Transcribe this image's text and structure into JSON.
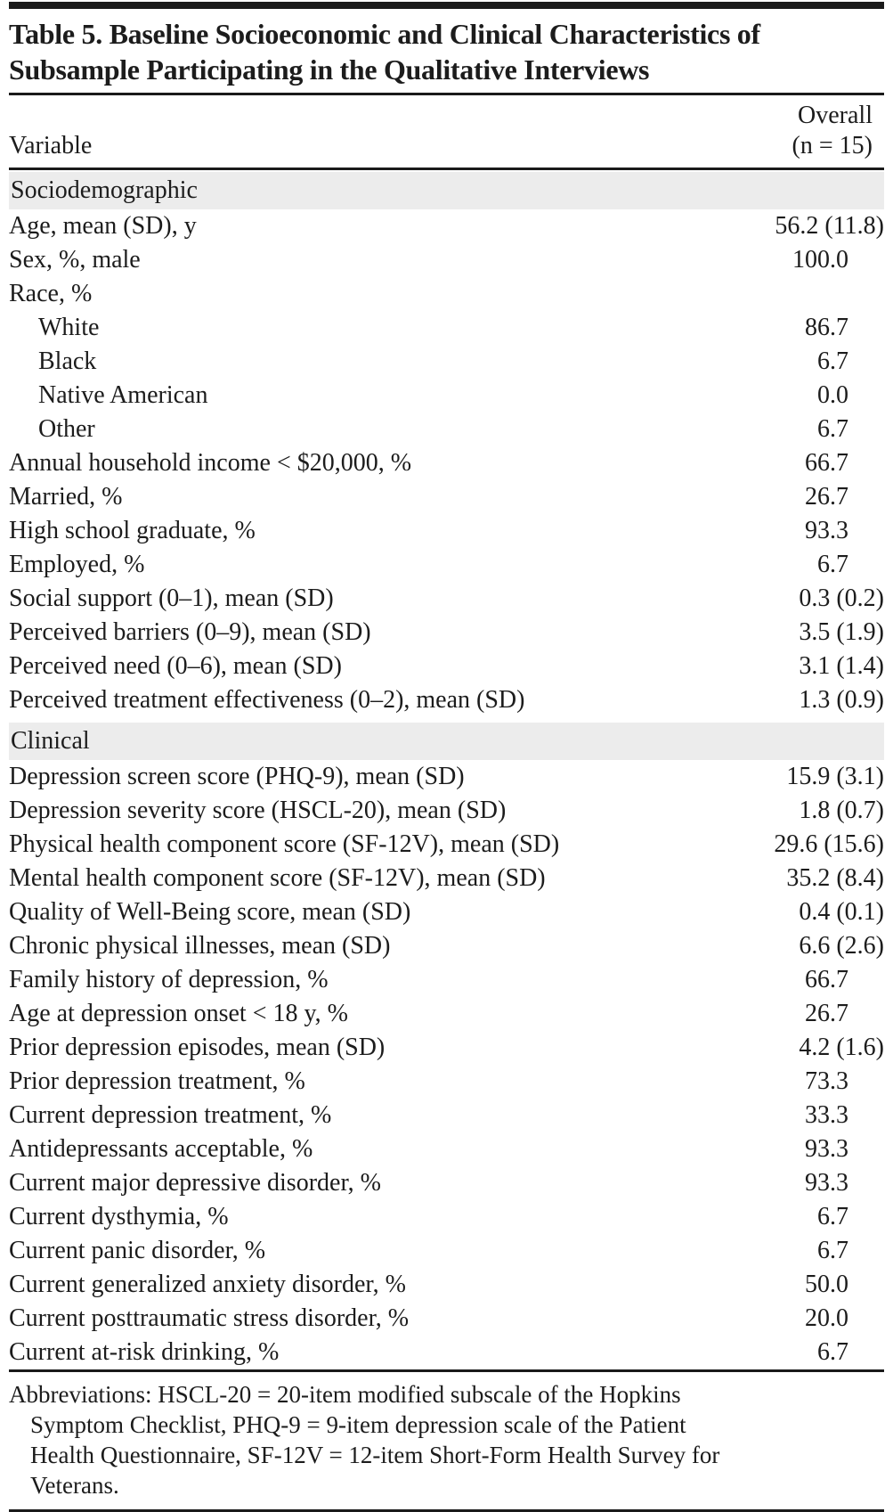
{
  "title_lines": [
    "Table 5. Baseline Socioeconomic and Clinical Characteristics of",
    "Subsample Participating in the Qualitative Interviews"
  ],
  "header": {
    "variable_col": "Variable",
    "overall_col_line1": "Overall",
    "overall_col_line2": "(n = 15)"
  },
  "sections": [
    {
      "label": "Sociodemographic",
      "rows": [
        {
          "label": "Age, mean (SD), y",
          "value": "56.2 (11.8)",
          "indent": false
        },
        {
          "label": "Sex, %, male",
          "value": "100.0",
          "indent": false
        },
        {
          "label": "Race, %",
          "value": "",
          "indent": false
        },
        {
          "label": "White",
          "value": "86.7",
          "indent": true
        },
        {
          "label": "Black",
          "value": "6.7",
          "indent": true
        },
        {
          "label": "Native American",
          "value": "0.0",
          "indent": true
        },
        {
          "label": "Other",
          "value": "6.7",
          "indent": true
        },
        {
          "label": "Annual household income < $20,000, %",
          "value": "66.7",
          "indent": false
        },
        {
          "label": "Married, %",
          "value": "26.7",
          "indent": false
        },
        {
          "label": "High school graduate, %",
          "value": "93.3",
          "indent": false
        },
        {
          "label": "Employed, %",
          "value": "6.7",
          "indent": false
        },
        {
          "label": "Social support (0–1), mean (SD)",
          "value": "0.3 (0.2)",
          "indent": false
        },
        {
          "label": "Perceived barriers (0–9), mean (SD)",
          "value": "3.5 (1.9)",
          "indent": false
        },
        {
          "label": "Perceived need (0–6), mean (SD)",
          "value": "3.1 (1.4)",
          "indent": false
        },
        {
          "label": "Perceived treatment effectiveness (0–2), mean (SD)",
          "value": "1.3 (0.9)",
          "indent": false
        }
      ]
    },
    {
      "label": "Clinical",
      "rows": [
        {
          "label": "Depression screen score (PHQ-9), mean (SD)",
          "value": "15.9 (3.1)",
          "indent": false
        },
        {
          "label": "Depression severity score (HSCL-20), mean (SD)",
          "value": "1.8 (0.7)",
          "indent": false
        },
        {
          "label": "Physical health component score (SF-12V), mean (SD)",
          "value": "29.6 (15.6)",
          "indent": false
        },
        {
          "label": "Mental health component score (SF-12V), mean (SD)",
          "value": "35.2 (8.4)",
          "indent": false
        },
        {
          "label": "Quality of Well-Being score, mean (SD)",
          "value": "0.4 (0.1)",
          "indent": false
        },
        {
          "label": "Chronic physical illnesses, mean (SD)",
          "value": "6.6 (2.6)",
          "indent": false
        },
        {
          "label": "Family history of depression, %",
          "value": "66.7",
          "indent": false
        },
        {
          "label": "Age at depression onset < 18 y, %",
          "value": "26.7",
          "indent": false
        },
        {
          "label": "Prior depression episodes, mean (SD)",
          "value": "4.2 (1.6)",
          "indent": false
        },
        {
          "label": "Prior depression treatment, %",
          "value": "73.3",
          "indent": false
        },
        {
          "label": "Current depression treatment, %",
          "value": "33.3",
          "indent": false
        },
        {
          "label": "Antidepressants acceptable, %",
          "value": "93.3",
          "indent": false
        },
        {
          "label": "Current major depressive disorder, %",
          "value": "93.3",
          "indent": false
        },
        {
          "label": "Current dysthymia, %",
          "value": "6.7",
          "indent": false
        },
        {
          "label": "Current panic disorder, %",
          "value": "6.7",
          "indent": false
        },
        {
          "label": "Current generalized anxiety disorder, %",
          "value": "50.0",
          "indent": false
        },
        {
          "label": "Current posttraumatic stress disorder, %",
          "value": "20.0",
          "indent": false
        },
        {
          "label": "Current at-risk drinking, %",
          "value": "6.7",
          "indent": false
        }
      ]
    }
  ],
  "footnote_lines": [
    "Abbreviations: HSCL-20 = 20-item modified subscale of the Hopkins",
    "Symptom Checklist, PHQ-9 = 9-item depression scale of the Patient",
    "Health Questionnaire, SF-12V = 12-item Short-Form Health Survey for",
    "Veterans."
  ],
  "colors": {
    "text": "#1c1c1c",
    "rule": "#1a1a1a",
    "section_band": "#ececec",
    "background": "#ffffff"
  }
}
